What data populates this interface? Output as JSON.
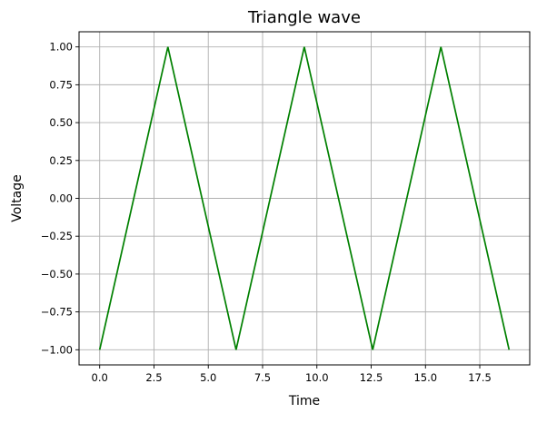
{
  "chart_data": {
    "type": "line",
    "title": "Triangle wave",
    "xlabel": "Time",
    "ylabel": "Voltage",
    "xlim": [
      -0.95,
      19.8
    ],
    "ylim": [
      -1.1,
      1.1
    ],
    "grid": true,
    "x_ticks": [
      0.0,
      2.5,
      5.0,
      7.5,
      10.0,
      12.5,
      15.0,
      17.5
    ],
    "x_tick_labels": [
      "0.0",
      "2.5",
      "5.0",
      "7.5",
      "10.0",
      "12.5",
      "15.0",
      "17.5"
    ],
    "y_ticks": [
      1.0,
      0.75,
      0.5,
      0.25,
      0.0,
      -0.25,
      -0.5,
      -0.75,
      -1.0
    ],
    "y_tick_labels": [
      "1.00",
      "0.75",
      "0.50",
      "0.25",
      "0.00",
      "−0.25",
      "−0.50",
      "−0.75",
      "−1.00"
    ],
    "series": [
      {
        "color": "#008000",
        "x": [
          0.0,
          3.14,
          6.28,
          9.42,
          12.57,
          15.71,
          18.85
        ],
        "y": [
          -1.0,
          1.0,
          -1.0,
          1.0,
          -1.0,
          1.0,
          -1.0
        ]
      }
    ],
    "colors": {
      "grid": "#b0b0b0",
      "axis": "#000000"
    }
  }
}
